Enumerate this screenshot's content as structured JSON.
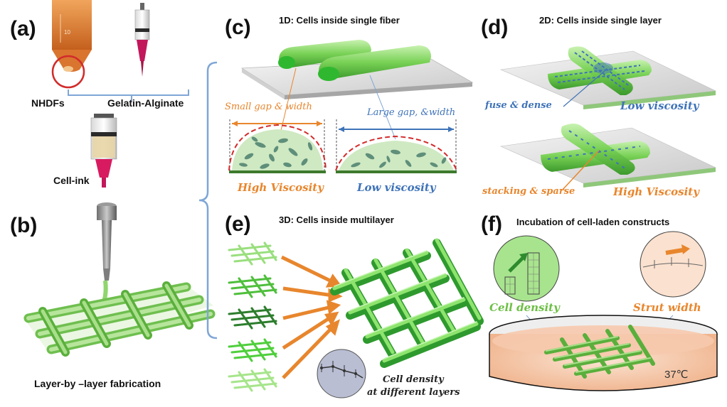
{
  "panels": {
    "a": {
      "letter": "(a)",
      "label_left": "NHDFs",
      "label_right": "Gelatin-Alginate",
      "label_bottom": "Cell-ink"
    },
    "b": {
      "letter": "(b)",
      "caption": "Layer-by –layer fabrication"
    },
    "c": {
      "letter": "(c)",
      "title": "1D: Cells inside single fiber",
      "left_annotation": "Small gap & width",
      "right_annotation": "Large gap, &width",
      "left_label": "High Viscosity",
      "right_label": "Low viscosity"
    },
    "d": {
      "letter": "(d)",
      "title": "2D: Cells inside single layer",
      "top_note": "fuse & dense",
      "top_label": "Low viscosity",
      "bottom_note": "stacking & sparse",
      "bottom_label": "High Viscosity"
    },
    "e": {
      "letter": "(e)",
      "title": "3D: Cells inside multilayer",
      "inset_line1": "Cell density",
      "inset_line2": "at different layers"
    },
    "f": {
      "letter": "(f)",
      "title": "Incubation  of cell-laden constructs",
      "left_inset": "Cell density",
      "right_inset": "Strut width",
      "temperature": "37℃"
    }
  },
  "colors": {
    "green": "#6cbf44",
    "dark_green": "#2e8b2e",
    "orange": "#e8862d",
    "blue": "#3f73b8",
    "bracket_blue": "#7fa6d6",
    "red": "#d22b2b",
    "dish_pink": "#f6c9ad"
  }
}
